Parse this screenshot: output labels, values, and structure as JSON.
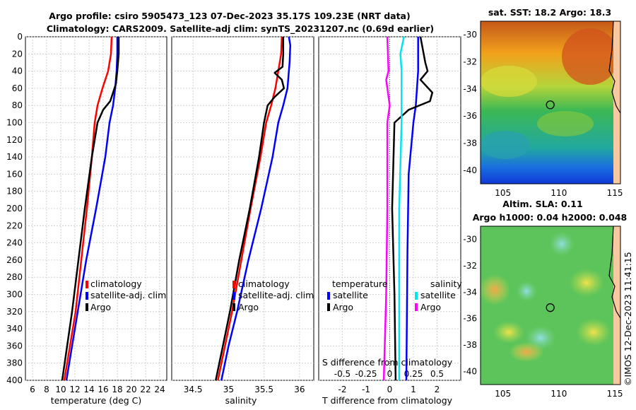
{
  "header": {
    "title_line1": "Argo profile: csiro 5905473_123 07-Dec-2023 35.17S 109.23E (NRT data)",
    "title_line2": "Climatology: CARS2009. Satellite-adj clim: synTS_20231207.nc (0.69d earlier)"
  },
  "colors": {
    "climatology": "#ff0000",
    "satellite": "#0000ff",
    "argo": "#000000",
    "cyan": "#00e5ee",
    "magenta": "#ff00ff"
  },
  "chart_data": [
    {
      "type": "line",
      "id": "temperature",
      "title": "",
      "xlabel": "temperature (deg C)",
      "ylabel": "",
      "xlim": [
        5,
        25
      ],
      "ylim": [
        400,
        0
      ],
      "xticks": [
        "6",
        "8",
        "10",
        "12",
        "14",
        "16",
        "18",
        "20",
        "22",
        "24"
      ],
      "yticks": [
        "0",
        "20",
        "40",
        "60",
        "80",
        "100",
        "120",
        "140",
        "160",
        "180",
        "200",
        "220",
        "240",
        "260",
        "280",
        "300",
        "320",
        "340",
        "360",
        "380",
        "400"
      ],
      "series": [
        {
          "name": "climatology",
          "color": "#ff0000",
          "points": [
            [
              17.2,
              0
            ],
            [
              17.1,
              20
            ],
            [
              16.7,
              40
            ],
            [
              15.9,
              60
            ],
            [
              15.2,
              80
            ],
            [
              14.8,
              100
            ],
            [
              14.4,
              140
            ],
            [
              13.7,
              200
            ],
            [
              12.9,
              260
            ],
            [
              12.1,
              320
            ],
            [
              11.3,
              360
            ],
            [
              10.5,
              400
            ]
          ]
        },
        {
          "name": "satellite-adj. clim",
          "color": "#0000ff",
          "points": [
            [
              18.0,
              0
            ],
            [
              18.0,
              20
            ],
            [
              17.9,
              40
            ],
            [
              17.7,
              60
            ],
            [
              17.4,
              80
            ],
            [
              16.9,
              100
            ],
            [
              16.3,
              140
            ],
            [
              15.0,
              200
            ],
            [
              13.6,
              260
            ],
            [
              12.4,
              320
            ],
            [
              11.6,
              360
            ],
            [
              10.8,
              400
            ]
          ]
        },
        {
          "name": "Argo",
          "color": "#000000",
          "points": [
            [
              18.2,
              0
            ],
            [
              18.2,
              20
            ],
            [
              18.0,
              40
            ],
            [
              17.8,
              55
            ],
            [
              17.0,
              75
            ],
            [
              16.0,
              85
            ],
            [
              15.2,
              100
            ],
            [
              14.4,
              140
            ],
            [
              13.4,
              200
            ],
            [
              12.5,
              260
            ],
            [
              11.6,
              320
            ],
            [
              10.9,
              360
            ],
            [
              10.2,
              400
            ]
          ]
        }
      ],
      "legend": [
        "climatology",
        "satellite-adj. clim",
        "Argo"
      ]
    },
    {
      "type": "line",
      "id": "salinity",
      "xlabel": "salinity",
      "xlim": [
        34.2,
        36.2
      ],
      "ylim": [
        400,
        0
      ],
      "xticks": [
        "34.5",
        "35",
        "35.5",
        "36"
      ],
      "series": [
        {
          "name": "climatology",
          "color": "#ff0000",
          "points": [
            [
              35.75,
              0
            ],
            [
              35.74,
              20
            ],
            [
              35.7,
              40
            ],
            [
              35.66,
              60
            ],
            [
              35.6,
              80
            ],
            [
              35.53,
              100
            ],
            [
              35.45,
              140
            ],
            [
              35.31,
              200
            ],
            [
              35.18,
              260
            ],
            [
              35.05,
              320
            ],
            [
              34.95,
              360
            ],
            [
              34.85,
              400
            ]
          ]
        },
        {
          "name": "satellite-adj. clim",
          "color": "#0000ff",
          "points": [
            [
              35.85,
              0
            ],
            [
              35.87,
              10
            ],
            [
              35.86,
              30
            ],
            [
              35.83,
              60
            ],
            [
              35.77,
              80
            ],
            [
              35.7,
              100
            ],
            [
              35.62,
              140
            ],
            [
              35.46,
              200
            ],
            [
              35.28,
              260
            ],
            [
              35.12,
              320
            ],
            [
              35.0,
              360
            ],
            [
              34.9,
              400
            ]
          ]
        },
        {
          "name": "Argo",
          "color": "#000000",
          "points": [
            [
              35.77,
              0
            ],
            [
              35.77,
              20
            ],
            [
              35.76,
              35
            ],
            [
              35.65,
              42
            ],
            [
              35.75,
              50
            ],
            [
              35.78,
              60
            ],
            [
              35.65,
              70
            ],
            [
              35.55,
              80
            ],
            [
              35.5,
              100
            ],
            [
              35.43,
              140
            ],
            [
              35.3,
              200
            ],
            [
              35.15,
              260
            ],
            [
              35.02,
              320
            ],
            [
              34.92,
              360
            ],
            [
              34.82,
              400
            ]
          ]
        }
      ],
      "legend": [
        "climatology",
        "satellite-adj. clim",
        "Argo"
      ]
    },
    {
      "type": "line",
      "id": "difference",
      "xlabel": "T difference from climatology",
      "xlabel_top": "S difference from climatology",
      "xlim": [
        -3,
        3
      ],
      "ylim": [
        400,
        0
      ],
      "xticks": [
        "-2",
        "-1",
        "0",
        "1",
        "2"
      ],
      "top_ticks": [
        "-0.5",
        "-0.25",
        "0",
        "0.25",
        "0.5"
      ],
      "series": [
        {
          "name": "T satellite",
          "color": "#0000ff",
          "points": [
            [
              1.2,
              0
            ],
            [
              1.2,
              40
            ],
            [
              1.1,
              80
            ],
            [
              1.0,
              100
            ],
            [
              0.8,
              160
            ],
            [
              0.75,
              250
            ],
            [
              0.7,
              400
            ]
          ]
        },
        {
          "name": "T Argo",
          "color": "#000000",
          "points": [
            [
              1.3,
              0
            ],
            [
              1.5,
              30
            ],
            [
              1.6,
              40
            ],
            [
              1.3,
              50
            ],
            [
              1.8,
              65
            ],
            [
              1.7,
              75
            ],
            [
              0.8,
              85
            ],
            [
              0.2,
              100
            ],
            [
              0.1,
              200
            ],
            [
              0.2,
              300
            ],
            [
              0.25,
              400
            ]
          ]
        },
        {
          "name": "S satellite",
          "color": "#00e5ee",
          "points": [
            [
              0.6,
              0
            ],
            [
              0.45,
              20
            ],
            [
              0.5,
              40
            ],
            [
              0.5,
              80
            ],
            [
              0.5,
              100
            ],
            [
              0.4,
              200
            ],
            [
              0.4,
              400
            ]
          ]
        },
        {
          "name": "S Argo",
          "color": "#ff00ff",
          "points": [
            [
              -0.1,
              0
            ],
            [
              -0.05,
              40
            ],
            [
              -0.15,
              50
            ],
            [
              0.0,
              80
            ],
            [
              -0.1,
              100
            ],
            [
              -0.1,
              200
            ],
            [
              -0.15,
              300
            ],
            [
              -0.25,
              400
            ]
          ]
        }
      ],
      "legend_temperature": [
        "temperature",
        "satellite",
        "Argo"
      ],
      "legend_salinity": [
        "salinity",
        "satellite",
        "Argo"
      ]
    },
    {
      "type": "heatmap",
      "id": "sst_map",
      "title": "sat. SST: 18.2 Argo: 18.3",
      "xticks": [
        "105",
        "110",
        "115"
      ],
      "yticks": [
        "-30",
        "-32",
        "-34",
        "-36",
        "-38",
        "-40"
      ],
      "xlim": [
        103,
        115.5
      ],
      "ylim": [
        -41,
        -29
      ],
      "marker": {
        "lon": 109.23,
        "lat": -35.17
      }
    },
    {
      "type": "heatmap",
      "id": "sla_map",
      "title_line1": "Altim. SLA: 0.11",
      "title_line2": "Argo h1000: 0.04 h2000: 0.048",
      "xticks": [
        "105",
        "110",
        "115"
      ],
      "yticks": [
        "-30",
        "-32",
        "-34",
        "-36",
        "-38",
        "-40"
      ],
      "xlim": [
        103,
        115.5
      ],
      "ylim": [
        -41,
        -29
      ],
      "marker": {
        "lon": 109.23,
        "lat": -35.17
      }
    }
  ],
  "footer": {
    "copyright": "©IMOS 12-Dec-2023 11:41:15"
  }
}
